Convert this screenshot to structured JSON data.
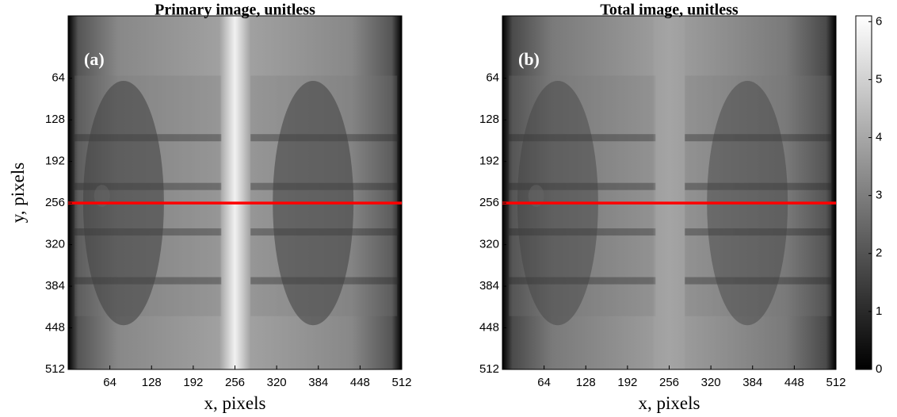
{
  "chart_data": [
    {
      "type": "image",
      "title": "Primary image, unitless",
      "panel_label": "(a)",
      "xlabel": "x, pixels",
      "ylabel": "y, pixels",
      "xlim": [
        0,
        512
      ],
      "ylim": [
        512,
        -32
      ],
      "xticks": [
        64,
        128,
        192,
        256,
        320,
        384,
        448,
        512
      ],
      "yticks": [
        64,
        128,
        192,
        256,
        320,
        384,
        448,
        512
      ],
      "hline": 256,
      "hline_color": "#ff0000",
      "center_strip": true
    },
    {
      "type": "image",
      "title": "Total image, unitless",
      "panel_label": "(b)",
      "xlabel": "x, pixels",
      "xlim": [
        0,
        512
      ],
      "ylim": [
        512,
        -32
      ],
      "xticks": [
        64,
        128,
        192,
        256,
        320,
        384,
        448,
        512
      ],
      "yticks": [
        64,
        128,
        192,
        256,
        320,
        384,
        448,
        512
      ],
      "hline": 256,
      "hline_color": "#ff0000",
      "center_strip": false,
      "colorbar": {
        "lim": [
          0,
          6.1
        ],
        "ticks": [
          0,
          1,
          2,
          3,
          4,
          5,
          6
        ]
      }
    }
  ]
}
